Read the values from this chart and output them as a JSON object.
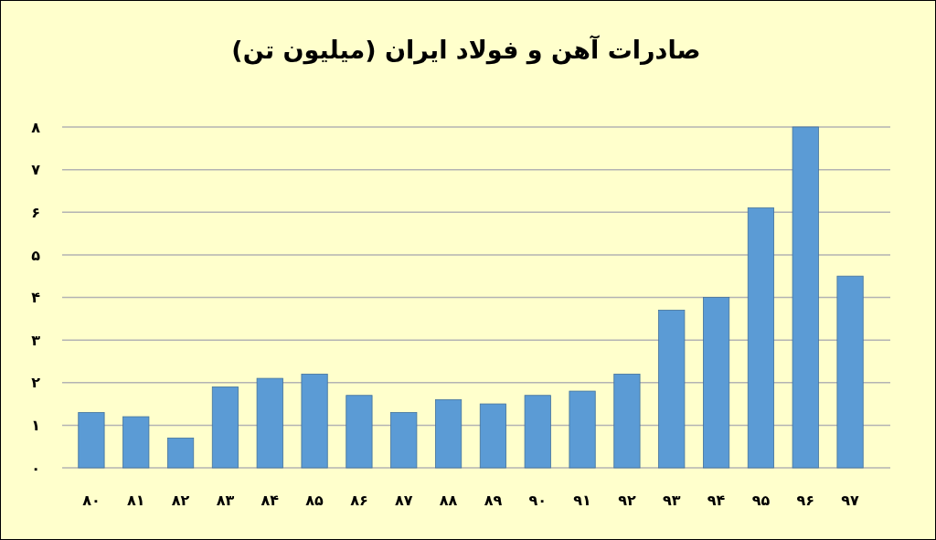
{
  "chart_data": {
    "type": "bar",
    "title": "صادرات آهن و فولاد ایران (میلیون تن)",
    "categories": [
      "۸۰",
      "۸۱",
      "۸۲",
      "۸۳",
      "۸۴",
      "۸۵",
      "۸۶",
      "۸۷",
      "۸۸",
      "۸۹",
      "۹۰",
      "۹۱",
      "۹۲",
      "۹۳",
      "۹۴",
      "۹۵",
      "۹۶",
      "۹۷"
    ],
    "values": [
      1.3,
      1.2,
      0.7,
      1.9,
      2.1,
      2.2,
      1.7,
      1.3,
      1.6,
      1.5,
      1.7,
      1.8,
      2.2,
      3.7,
      4.0,
      6.1,
      8.0,
      4.5
    ],
    "color": "#5b9bd5",
    "ylim": [
      0,
      8
    ],
    "yticks": [
      {
        "value": 0,
        "label": "۰"
      },
      {
        "value": 1,
        "label": "۱"
      },
      {
        "value": 2,
        "label": "۲"
      },
      {
        "value": 3,
        "label": "۳"
      },
      {
        "value": 4,
        "label": "۴"
      },
      {
        "value": 5,
        "label": "۵"
      },
      {
        "value": 6,
        "label": "۶"
      },
      {
        "value": 7,
        "label": "۷"
      },
      {
        "value": 8,
        "label": "۸"
      }
    ],
    "grid": "y"
  }
}
